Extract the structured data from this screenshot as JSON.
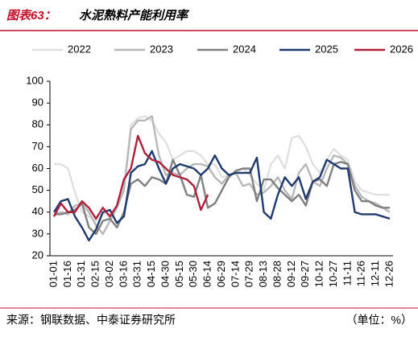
{
  "chart_data": {
    "type": "line",
    "figure_label": "图表63：",
    "title": "水泥熟料产能利用率",
    "source": "来源：钢联数据、中泰证券研究所",
    "unit": "（单位：%）",
    "categories": [
      "01-01",
      null,
      "01-16",
      null,
      "01-31",
      null,
      "02-15",
      null,
      "03-02",
      null,
      "03-16",
      null,
      "03-31",
      null,
      "04-15",
      null,
      "04-30",
      null,
      "05-15",
      null,
      "05-30",
      null,
      "06-14",
      null,
      "06-29",
      null,
      "07-14",
      null,
      "07-29",
      null,
      "08-13",
      null,
      "08-28",
      null,
      "09-12",
      null,
      "09-27",
      null,
      "10-12",
      null,
      "10-27",
      null,
      "11-11",
      null,
      "11-26",
      null,
      "12-11",
      null,
      "12-26"
    ],
    "ylim": [
      20,
      100
    ],
    "yticks": [
      20,
      30,
      40,
      50,
      60,
      70,
      80,
      90,
      100
    ],
    "grid": false,
    "series": [
      {
        "name": "2022",
        "color": "#e0e0e0",
        "values": [
          62,
          62,
          60,
          49,
          40,
          38,
          36,
          40,
          38,
          42,
          52,
          80,
          83,
          84,
          82,
          76,
          72,
          64,
          66,
          68,
          68,
          66,
          62,
          62,
          56,
          57,
          58,
          60,
          57,
          53,
          50,
          62,
          66,
          60,
          74,
          75,
          70,
          62,
          58,
          64,
          69,
          66,
          64,
          54,
          50,
          49,
          48,
          48,
          48
        ]
      },
      {
        "name": "2023",
        "color": "#b8b8b8",
        "values": [
          39,
          40,
          39,
          43,
          44,
          40,
          34,
          30,
          36,
          42,
          50,
          78,
          82,
          82,
          84,
          66,
          57,
          58,
          57,
          60,
          62,
          62,
          61,
          56,
          53,
          57,
          58,
          52,
          53,
          48,
          49,
          52,
          56,
          50,
          46,
          58,
          62,
          54,
          52,
          60,
          66,
          65,
          62,
          52,
          47,
          45,
          44,
          42,
          40
        ]
      },
      {
        "name": "2024",
        "color": "#808080",
        "values": [
          39,
          39,
          40,
          41,
          44,
          33,
          30,
          36,
          37,
          33,
          40,
          53,
          55,
          52,
          56,
          55,
          53,
          64,
          57,
          48,
          47,
          57,
          42,
          44,
          50,
          56,
          59,
          60,
          60,
          45,
          55,
          55,
          51,
          48,
          45,
          48,
          43,
          54,
          55,
          52,
          62,
          63,
          62,
          50,
          45,
          45,
          43,
          42,
          42
        ]
      },
      {
        "name": "2025",
        "color": "#1f3a6e",
        "values": [
          40,
          45,
          46,
          38,
          33,
          27,
          32,
          40,
          41,
          35,
          38,
          58,
          61,
          62,
          68,
          60,
          53,
          60,
          62,
          61,
          60,
          57,
          60,
          66,
          60,
          57,
          58,
          58,
          58,
          65,
          40,
          37,
          48,
          56,
          52,
          56,
          46,
          54,
          56,
          64,
          62,
          60,
          60,
          40,
          39,
          39,
          39,
          38,
          37
        ]
      },
      {
        "name": "2026",
        "color": "#b0203a",
        "values": [
          38,
          44,
          40,
          40,
          45,
          42,
          37,
          42,
          38,
          43,
          55,
          60,
          75,
          67,
          64,
          63,
          60,
          57,
          56,
          55,
          52,
          41,
          48,
          null,
          null,
          null,
          null,
          null,
          null,
          null,
          null,
          null,
          null,
          null,
          null,
          null,
          null,
          null,
          null,
          null,
          null,
          null,
          null,
          null,
          null,
          null,
          null,
          null,
          null
        ]
      }
    ]
  }
}
